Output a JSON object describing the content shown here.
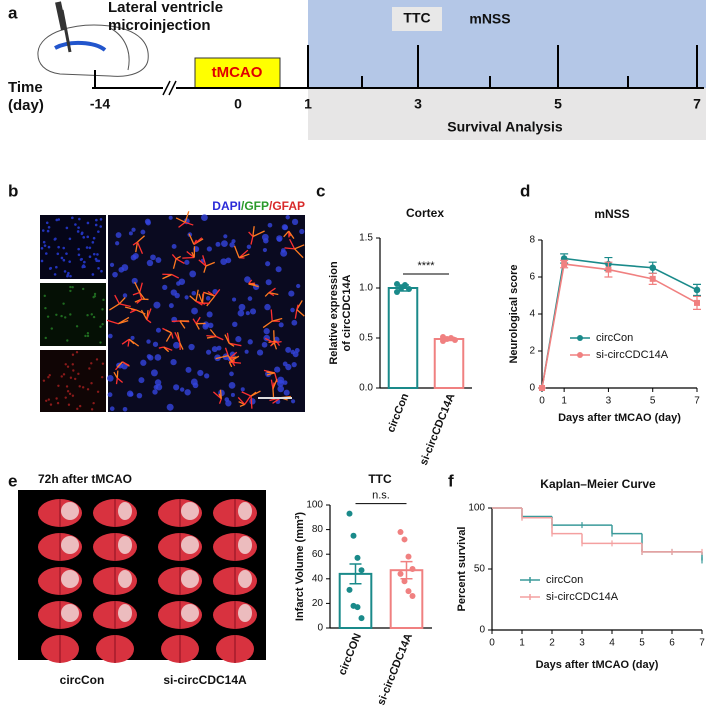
{
  "panel_labels": [
    "a",
    "b",
    "c",
    "d",
    "e",
    "f"
  ],
  "timeline": {
    "injection": [
      "Lateral ventricle",
      "microinjection"
    ],
    "time": [
      "Time",
      "(day)"
    ],
    "days": [
      "-14",
      "0",
      "1",
      "3",
      "5",
      "7"
    ],
    "tmcao": "tMCAO",
    "ttc": "TTC",
    "mnss": "mNSS",
    "survival": "Survival Analysis"
  },
  "staining": {
    "parts": [
      "DAPI",
      "/",
      "GFP",
      "/",
      "GFAP"
    ],
    "colors": [
      "#2a2ad8",
      "#2a9a2a",
      "#2a9a2a",
      "#d82a2a",
      "#d82a2a"
    ]
  },
  "ttc_panel": {
    "title": "72h after tMCAO",
    "groups": [
      "circCon",
      "si-circCDC14A"
    ]
  },
  "chart_data": [
    {
      "type": "bar",
      "title": "Cortex",
      "y_label": [
        "Relative expression",
        "of circCDC14A"
      ],
      "categories": [
        "circCon",
        "si-circCDC14A"
      ],
      "values": [
        1.0,
        0.49
      ],
      "errors": [
        0.03,
        0.015
      ],
      "points": [
        [
          0.96,
          1.0,
          1.03,
          0.99,
          1.04
        ],
        [
          0.47,
          0.49,
          0.5,
          0.48,
          0.51
        ]
      ],
      "colors": [
        "#1a8a8a",
        "#f08080"
      ],
      "ylim": [
        0,
        1.5
      ],
      "yticks": [
        {
          "value": 0,
          "label": "0.0"
        },
        {
          "value": 0.5,
          "label": "0.5"
        },
        {
          "value": 1,
          "label": "1.0"
        },
        {
          "value": 1.5,
          "label": "1.5"
        }
      ],
      "annotation": "****"
    },
    {
      "type": "line",
      "title": "mNSS",
      "x_label": "Days after tMCAO (day)",
      "y_label": "Neurological score",
      "x": [
        0,
        1,
        3,
        5,
        7
      ],
      "xlim": [
        0,
        7
      ],
      "xticks": [
        0,
        1,
        3,
        5,
        7
      ],
      "ylim": [
        0,
        8
      ],
      "yticks": [
        0,
        2,
        4,
        6,
        8
      ],
      "legend": "lower left",
      "series": [
        {
          "name": "circCon",
          "color": "#1a8a8a",
          "values": [
            0,
            7.0,
            6.7,
            6.5,
            5.3
          ],
          "errors": [
            0,
            0.25,
            0.35,
            0.3,
            0.3
          ]
        },
        {
          "name": "si-circCDC14A",
          "color": "#f08080",
          "values": [
            0,
            6.7,
            6.4,
            5.9,
            4.6
          ],
          "errors": [
            0,
            0.2,
            0.4,
            0.3,
            0.35
          ]
        }
      ]
    },
    {
      "type": "bar",
      "title": "TTC",
      "y_label": [
        "Infarct Volume (mm³)"
      ],
      "categories": [
        "circCON",
        "si-circCDC14A"
      ],
      "values": [
        44,
        47
      ],
      "errors": [
        8,
        7
      ],
      "points": [
        [
          93,
          75,
          57,
          47,
          31,
          18,
          17,
          8
        ],
        [
          78,
          72,
          58,
          48,
          44,
          38,
          30,
          26
        ]
      ],
      "colors": [
        "#1a8a8a",
        "#f08080"
      ],
      "ylim": [
        0,
        100
      ],
      "yticks": [
        0,
        20,
        40,
        60,
        80,
        100
      ],
      "annotation": "n.s."
    },
    {
      "type": "step",
      "title": "Kaplan–Meier Curve",
      "x_label": "Days after tMCAO (day)",
      "y_label": "Percent survival",
      "x": [
        0,
        1,
        2,
        3,
        4,
        5,
        6,
        7
      ],
      "xlim": [
        0,
        7
      ],
      "xticks": [
        0,
        1,
        2,
        3,
        4,
        5,
        6,
        7
      ],
      "ylim": [
        0,
        100
      ],
      "yticks": [
        0,
        50,
        100
      ],
      "legend": "lower left",
      "series": [
        {
          "name": "circCon",
          "color": "#3a9a9a",
          "values": [
            100,
            93,
            86,
            86,
            79,
            64,
            64,
            57
          ]
        },
        {
          "name": "si-circCDC14A",
          "color": "#f4a0a0",
          "values": [
            100,
            92,
            79,
            71,
            71,
            64,
            64,
            64
          ]
        }
      ]
    }
  ]
}
